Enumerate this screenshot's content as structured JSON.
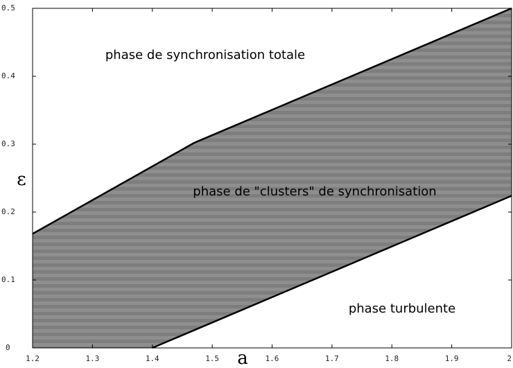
{
  "chart_data": {
    "type": "area",
    "xlabel": "a",
    "ylabel": "ε",
    "xlim": [
      1.2,
      2
    ],
    "ylim": [
      0,
      0.5
    ],
    "xticks": [
      1.2,
      1.3,
      1.4,
      1.5,
      1.6,
      1.7,
      1.8,
      1.9,
      2
    ],
    "yticks": [
      0,
      0.1,
      0.2,
      0.3,
      0.4,
      0.5
    ],
    "fill_color": "#858585",
    "line_color": "#000000",
    "series": [
      {
        "x": [
          1.2,
          1.47,
          2
        ],
        "values": [
          0.168,
          0.302,
          0.5
        ]
      },
      {
        "x": [
          1.4,
          2
        ],
        "values": [
          0,
          0.224
        ]
      }
    ],
    "annotations": [
      "phase de synchronisation totale",
      "phase de \"clusters\" de synchronisation",
      "phase turbulente"
    ]
  }
}
